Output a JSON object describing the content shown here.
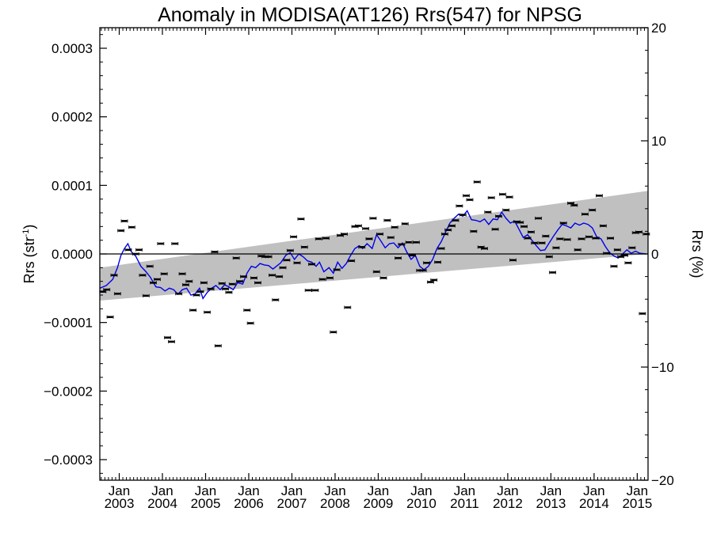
{
  "chart_data": {
    "type": "scatter",
    "title": "Anomaly in MODISA(AT126) Rrs(547) for NPSG",
    "ylabel_left": "Rrs (str",
    "ylabel_left_sup": "-1",
    "ylabel_left_end": ")",
    "ylabel_right": "Rrs (%)",
    "ylim": [
      -0.00033,
      0.00033
    ],
    "y2lim": [
      -20,
      20
    ],
    "xlim": [
      2002.55,
      2015.25
    ],
    "yticks": [
      {
        "v": 0.0003,
        "label": "0.0003"
      },
      {
        "v": 0.0002,
        "label": "0.0002"
      },
      {
        "v": 0.0001,
        "label": "0.0001"
      },
      {
        "v": 0.0,
        "label": "0.0000"
      },
      {
        "v": -0.0001,
        "label": "−0.0001"
      },
      {
        "v": -0.0002,
        "label": "−0.0002"
      },
      {
        "v": -0.0003,
        "label": "−0.0003"
      }
    ],
    "y2ticks": [
      {
        "v": 20,
        "label": "20"
      },
      {
        "v": 10,
        "label": "10"
      },
      {
        "v": 0,
        "label": "0"
      },
      {
        "v": -10,
        "label": "−10"
      },
      {
        "v": -20,
        "label": "−20"
      }
    ],
    "xticks": [
      {
        "v": 2003.0,
        "month": "Jan",
        "year": "2003"
      },
      {
        "v": 2004.0,
        "month": "Jan",
        "year": "2004"
      },
      {
        "v": 2005.0,
        "month": "Jan",
        "year": "2005"
      },
      {
        "v": 2006.0,
        "month": "Jan",
        "year": "2006"
      },
      {
        "v": 2007.0,
        "month": "Jan",
        "year": "2007"
      },
      {
        "v": 2008.0,
        "month": "Jan",
        "year": "2008"
      },
      {
        "v": 2009.0,
        "month": "Jan",
        "year": "2009"
      },
      {
        "v": 2010.0,
        "month": "Jan",
        "year": "2010"
      },
      {
        "v": 2011.0,
        "month": "Jan",
        "year": "2011"
      },
      {
        "v": 2012.0,
        "month": "Jan",
        "year": "2012"
      },
      {
        "v": 2013.0,
        "month": "Jan",
        "year": "2013"
      },
      {
        "v": 2014.0,
        "month": "Jan",
        "year": "2014"
      },
      {
        "v": 2015.0,
        "month": "Jan",
        "year": "2015"
      }
    ],
    "trend_band": {
      "start": {
        "x": 2002.55,
        "upper": -2e-05,
        "lower": -6.8e-05
      },
      "end": {
        "x": 2015.25,
        "upper": 9.2e-05,
        "lower": 0.0
      }
    },
    "zero_line": 0.0,
    "points": [
      [
        2002.62,
        -5.5e-05
      ],
      [
        2002.71,
        -5.2e-05
      ],
      [
        2002.79,
        -9.2e-05
      ],
      [
        2002.88,
        -3.1e-05
      ],
      [
        2002.96,
        -5.8e-05
      ],
      [
        2003.04,
        3.4e-05
      ],
      [
        2003.12,
        4.8e-05
      ],
      [
        2003.21,
        6e-06
      ],
      [
        2003.29,
        3.9e-05
      ],
      [
        2003.38,
        0.0
      ],
      [
        2003.46,
        6e-06
      ],
      [
        2003.54,
        -3.1e-05
      ],
      [
        2003.62,
        -6.1e-05
      ],
      [
        2003.71,
        -1.8e-05
      ],
      [
        2003.79,
        -4.2e-05
      ],
      [
        2003.88,
        -3.7e-05
      ],
      [
        2003.96,
        1.5e-05
      ],
      [
        2004.04,
        -2.9e-05
      ],
      [
        2004.12,
        -0.000122
      ],
      [
        2004.21,
        -0.000128
      ],
      [
        2004.29,
        1.5e-05
      ],
      [
        2004.38,
        -5.8e-05
      ],
      [
        2004.46,
        -2.9e-05
      ],
      [
        2004.54,
        -4.5e-05
      ],
      [
        2004.62,
        -4e-05
      ],
      [
        2004.71,
        -8.2e-05
      ],
      [
        2004.79,
        -6e-05
      ],
      [
        2004.88,
        -5.5e-05
      ],
      [
        2004.96,
        -4.2e-05
      ],
      [
        2005.04,
        -8.5e-05
      ],
      [
        2005.12,
        -5.1e-05
      ],
      [
        2005.21,
        3e-06
      ],
      [
        2005.29,
        -0.000134
      ],
      [
        2005.38,
        -4.3e-05
      ],
      [
        2005.46,
        -5.1e-05
      ],
      [
        2005.54,
        -5.6e-05
      ],
      [
        2005.62,
        -4.4e-05
      ],
      [
        2005.71,
        -6e-06
      ],
      [
        2005.79,
        -4e-05
      ],
      [
        2005.88,
        -3.3e-05
      ],
      [
        2005.96,
        -8.2e-05
      ],
      [
        2006.04,
        -0.000101
      ],
      [
        2006.12,
        -3.5e-05
      ],
      [
        2006.21,
        -4.2e-05
      ],
      [
        2006.29,
        -3e-06
      ],
      [
        2006.38,
        -4e-06
      ],
      [
        2006.46,
        -4e-06
      ],
      [
        2006.54,
        -3.1e-05
      ],
      [
        2006.62,
        -6.7e-05
      ],
      [
        2006.71,
        -3.3e-05
      ],
      [
        2006.79,
        -2e-05
      ],
      [
        2006.88,
        -9e-06
      ],
      [
        2006.96,
        5e-06
      ],
      [
        2007.04,
        2.5e-05
      ],
      [
        2007.12,
        -1.3e-05
      ],
      [
        2007.21,
        5.1e-05
      ],
      [
        2007.29,
        1e-05
      ],
      [
        2007.38,
        -5.3e-05
      ],
      [
        2007.46,
        -1.5e-05
      ],
      [
        2007.54,
        -5.3e-05
      ],
      [
        2007.62,
        2.2e-05
      ],
      [
        2007.71,
        -3.7e-05
      ],
      [
        2007.79,
        2.3e-05
      ],
      [
        2007.88,
        -3.5e-05
      ],
      [
        2007.96,
        -0.000114
      ],
      [
        2008.04,
        -2.3e-05
      ],
      [
        2008.12,
        2.7e-05
      ],
      [
        2008.21,
        2.9e-05
      ],
      [
        2008.29,
        -7.8e-05
      ],
      [
        2008.38,
        -1e-05
      ],
      [
        2008.46,
        4e-05
      ],
      [
        2008.54,
        4.1e-05
      ],
      [
        2008.62,
        1e-05
      ],
      [
        2008.71,
        3.7e-05
      ],
      [
        2008.79,
        2.2e-05
      ],
      [
        2008.88,
        5.2e-05
      ],
      [
        2008.96,
        -2.6e-05
      ],
      [
        2009.04,
        2.9e-05
      ],
      [
        2009.12,
        -3.5e-05
      ],
      [
        2009.21,
        4.9e-05
      ],
      [
        2009.29,
        2.4e-05
      ],
      [
        2009.38,
        3.9e-05
      ],
      [
        2009.46,
        -6e-06
      ],
      [
        2009.54,
        1.4e-05
      ],
      [
        2009.62,
        4.4e-05
      ],
      [
        2009.71,
        1.7e-05
      ],
      [
        2009.79,
        -2e-06
      ],
      [
        2009.88,
        1.7e-05
      ],
      [
        2009.96,
        -2.4e-05
      ],
      [
        2010.04,
        -2.4e-05
      ],
      [
        2010.12,
        -1.3e-05
      ],
      [
        2010.21,
        -4.1e-05
      ],
      [
        2010.29,
        -3.8e-05
      ],
      [
        2010.38,
        -1.2e-05
      ],
      [
        2010.46,
        8e-06
      ],
      [
        2010.54,
        2.9e-05
      ],
      [
        2010.62,
        3.5e-05
      ],
      [
        2010.71,
        4.1e-05
      ],
      [
        2010.79,
        4.9e-05
      ],
      [
        2010.88,
        7e-05
      ],
      [
        2010.96,
        5.7e-05
      ],
      [
        2011.04,
        8.5e-05
      ],
      [
        2011.12,
        7.9e-05
      ],
      [
        2011.21,
        3.3e-05
      ],
      [
        2011.29,
        0.000105
      ],
      [
        2011.38,
        1e-05
      ],
      [
        2011.46,
        8e-06
      ],
      [
        2011.54,
        6.1e-05
      ],
      [
        2011.62,
        8.2e-05
      ],
      [
        2011.71,
        3.6e-05
      ],
      [
        2011.79,
        5.5e-05
      ],
      [
        2011.88,
        8.7e-05
      ],
      [
        2011.96,
        6.4e-05
      ],
      [
        2012.04,
        8.3e-05
      ],
      [
        2012.12,
        -9e-06
      ],
      [
        2012.21,
        4.7e-05
      ],
      [
        2012.29,
        4.6e-05
      ],
      [
        2012.38,
        4e-05
      ],
      [
        2012.46,
        2.3e-05
      ],
      [
        2012.54,
        3.2e-05
      ],
      [
        2012.62,
        1.6e-05
      ],
      [
        2012.71,
        5.2e-05
      ],
      [
        2012.79,
        1.6e-05
      ],
      [
        2012.88,
        2.6e-05
      ],
      [
        2012.96,
        -4e-06
      ],
      [
        2013.04,
        -2.7e-05
      ],
      [
        2013.12,
        9e-06
      ],
      [
        2013.21,
        2.2e-05
      ],
      [
        2013.29,
        4.5e-05
      ],
      [
        2013.38,
        2.1e-05
      ],
      [
        2013.46,
        7.4e-05
      ],
      [
        2013.54,
        7.1e-05
      ],
      [
        2013.62,
        6e-06
      ],
      [
        2013.71,
        2.2e-05
      ],
      [
        2013.79,
        5.8e-05
      ],
      [
        2013.88,
        2.5e-05
      ],
      [
        2013.96,
        6.4e-05
      ],
      [
        2014.04,
        2.3e-05
      ],
      [
        2014.12,
        8.5e-05
      ],
      [
        2014.21,
        4.1e-05
      ],
      [
        2014.29,
        1e-06
      ],
      [
        2014.38,
        2.3e-05
      ],
      [
        2014.46,
        -1.8e-05
      ],
      [
        2014.54,
        6e-06
      ],
      [
        2014.62,
        -4e-06
      ],
      [
        2014.71,
        -2e-06
      ],
      [
        2014.79,
        -1.3e-05
      ],
      [
        2014.88,
        9e-06
      ],
      [
        2014.96,
        3.1e-05
      ],
      [
        2015.04,
        3.2e-05
      ],
      [
        2015.12,
        -8.7e-05
      ],
      [
        2015.21,
        2.9e-05
      ]
    ],
    "running_mean": [
      [
        2002.55,
        -5e-05
      ],
      [
        2002.7,
        -4.6e-05
      ],
      [
        2002.85,
        -3.7e-05
      ],
      [
        2002.96,
        -2e-05
      ],
      [
        2003.04,
        -2e-06
      ],
      [
        2003.12,
        8e-06
      ],
      [
        2003.2,
        1.5e-05
      ],
      [
        2003.28,
        3e-06
      ],
      [
        2003.38,
        -3e-06
      ],
      [
        2003.5,
        -1.8e-05
      ],
      [
        2003.62,
        -2.6e-05
      ],
      [
        2003.72,
        -3.4e-05
      ],
      [
        2003.85,
        -4.8e-05
      ],
      [
        2003.96,
        -4.9e-05
      ],
      [
        2004.06,
        -5.4e-05
      ],
      [
        2004.16,
        -5e-05
      ],
      [
        2004.26,
        -5.2e-05
      ],
      [
        2004.36,
        -5.9e-05
      ],
      [
        2004.46,
        -5.2e-05
      ],
      [
        2004.56,
        -5e-05
      ],
      [
        2004.66,
        -6e-05
      ],
      [
        2004.76,
        -5.8e-05
      ],
      [
        2004.86,
        -5e-05
      ],
      [
        2004.94,
        -6.5e-05
      ],
      [
        2005.04,
        -5.6e-05
      ],
      [
        2005.14,
        -5e-05
      ],
      [
        2005.24,
        -4.6e-05
      ],
      [
        2005.34,
        -5.2e-05
      ],
      [
        2005.44,
        -4.5e-05
      ],
      [
        2005.54,
        -4.8e-05
      ],
      [
        2005.64,
        -5.2e-05
      ],
      [
        2005.74,
        -4.2e-05
      ],
      [
        2005.86,
        -4.4e-05
      ],
      [
        2005.96,
        -2.8e-05
      ],
      [
        2006.06,
        -1.8e-05
      ],
      [
        2006.16,
        -2e-05
      ],
      [
        2006.26,
        -1.4e-05
      ],
      [
        2006.36,
        -1.6e-05
      ],
      [
        2006.46,
        -1.7e-05
      ],
      [
        2006.56,
        -2.2e-05
      ],
      [
        2006.64,
        -1.8e-05
      ],
      [
        2006.74,
        -1.3e-05
      ],
      [
        2006.86,
        -2e-06
      ],
      [
        2006.96,
        2e-06
      ],
      [
        2007.06,
        -8e-06
      ],
      [
        2007.16,
        0.0
      ],
      [
        2007.26,
        -4e-06
      ],
      [
        2007.36,
        -1e-05
      ],
      [
        2007.46,
        -1.2e-05
      ],
      [
        2007.56,
        -1.8e-05
      ],
      [
        2007.64,
        -1.2e-05
      ],
      [
        2007.74,
        -2.6e-05
      ],
      [
        2007.86,
        -2e-05
      ],
      [
        2007.96,
        -2.8e-05
      ],
      [
        2008.06,
        -1.2e-05
      ],
      [
        2008.16,
        -2.1e-05
      ],
      [
        2008.26,
        -1.4e-05
      ],
      [
        2008.36,
        -2e-06
      ],
      [
        2008.46,
        8e-06
      ],
      [
        2008.56,
        1.2e-05
      ],
      [
        2008.64,
        8e-06
      ],
      [
        2008.74,
        1.5e-05
      ],
      [
        2008.86,
        8e-06
      ],
      [
        2008.96,
        2.8e-05
      ],
      [
        2009.06,
        1.9e-05
      ],
      [
        2009.16,
        9e-06
      ],
      [
        2009.26,
        1.5e-05
      ],
      [
        2009.36,
        1.6e-05
      ],
      [
        2009.46,
        9e-06
      ],
      [
        2009.56,
        1.6e-05
      ],
      [
        2009.66,
        3e-06
      ],
      [
        2009.76,
        -8e-06
      ],
      [
        2009.86,
        -2e-06
      ],
      [
        2009.96,
        -1.8e-05
      ],
      [
        2010.06,
        -2.3e-05
      ],
      [
        2010.16,
        -1.8e-05
      ],
      [
        2010.26,
        -8e-06
      ],
      [
        2010.36,
        8e-06
      ],
      [
        2010.46,
        1.8e-05
      ],
      [
        2010.56,
        3.2e-05
      ],
      [
        2010.66,
        4.5e-05
      ],
      [
        2010.76,
        5.2e-05
      ],
      [
        2010.86,
        5.8e-05
      ],
      [
        2010.96,
        5.5e-05
      ],
      [
        2011.06,
        6.3e-05
      ],
      [
        2011.16,
        5e-05
      ],
      [
        2011.26,
        4.9e-05
      ],
      [
        2011.36,
        4.7e-05
      ],
      [
        2011.46,
        5.1e-05
      ],
      [
        2011.56,
        4.3e-05
      ],
      [
        2011.66,
        5.1e-05
      ],
      [
        2011.76,
        5e-05
      ],
      [
        2011.86,
        6.1e-05
      ],
      [
        2011.96,
        5.2e-05
      ],
      [
        2012.06,
        4.5e-05
      ],
      [
        2012.16,
        4.8e-05
      ],
      [
        2012.26,
        3.6e-05
      ],
      [
        2012.36,
        2.4e-05
      ],
      [
        2012.46,
        2.8e-05
      ],
      [
        2012.56,
        2e-05
      ],
      [
        2012.66,
        1.2e-05
      ],
      [
        2012.76,
        5e-06
      ],
      [
        2012.86,
        6e-06
      ],
      [
        2012.96,
        1.6e-05
      ],
      [
        2013.06,
        2.6e-05
      ],
      [
        2013.16,
        3.5e-05
      ],
      [
        2013.26,
        4.3e-05
      ],
      [
        2013.36,
        4.1e-05
      ],
      [
        2013.46,
        3.8e-05
      ],
      [
        2013.56,
        4.5e-05
      ],
      [
        2013.66,
        4.2e-05
      ],
      [
        2013.76,
        4.5e-05
      ],
      [
        2013.86,
        4.3e-05
      ],
      [
        2013.96,
        3.8e-05
      ],
      [
        2014.06,
        2.5e-05
      ],
      [
        2014.16,
        2.2e-05
      ],
      [
        2014.26,
        1.1e-05
      ],
      [
        2014.36,
        2e-06
      ],
      [
        2014.46,
        -3e-06
      ],
      [
        2014.56,
        -6e-06
      ],
      [
        2014.66,
        0.0
      ],
      [
        2014.76,
        6e-06
      ],
      [
        2014.86,
        1e-06
      ],
      [
        2014.96,
        4e-06
      ],
      [
        2015.06,
        1e-06
      ],
      [
        2015.2,
        0.0
      ]
    ],
    "colors": {
      "band": "#c0c0c0",
      "running_mean": "#0000ee",
      "points": "#000000",
      "axis": "#000000"
    },
    "legend": "none",
    "grid": false
  }
}
